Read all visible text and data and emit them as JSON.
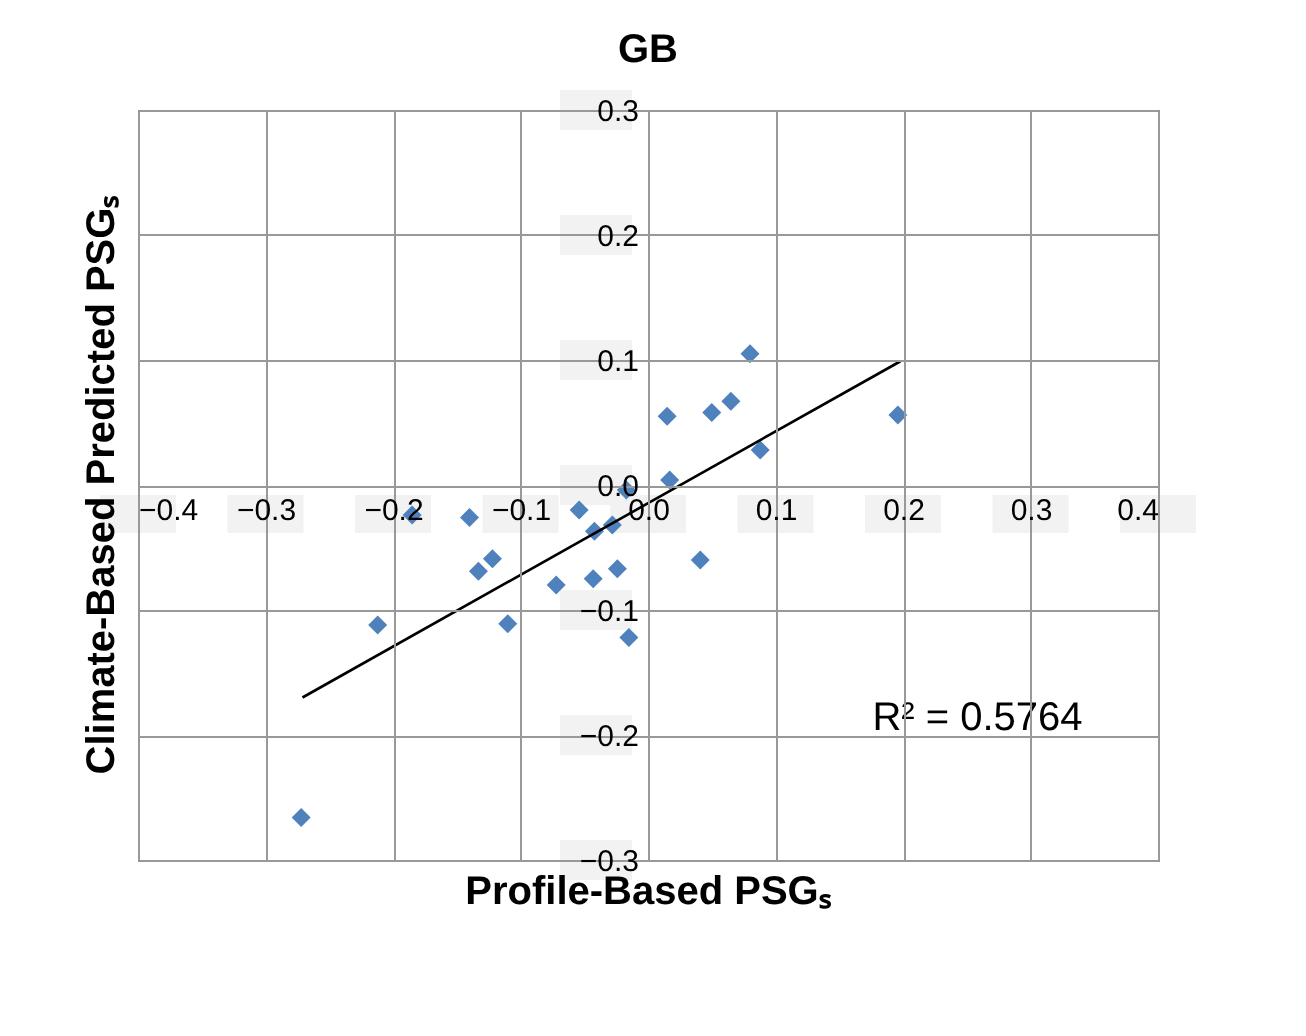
{
  "chart_data": {
    "type": "scatter",
    "title": "GB",
    "xlabel": "Profile-Based PSGₛ",
    "ylabel": "Climate-Based Predicted PSGₛ",
    "xlim": [
      -0.4,
      0.4
    ],
    "ylim": [
      -0.3,
      0.3
    ],
    "xticks": [
      {
        "value": -0.4,
        "label": "−0.4"
      },
      {
        "value": -0.3,
        "label": "−0.3"
      },
      {
        "value": -0.2,
        "label": "−0.2"
      },
      {
        "value": -0.1,
        "label": "−0.1"
      },
      {
        "value": 0,
        "label": "0.0"
      },
      0.1,
      0.2,
      0.3,
      0.4
    ],
    "yticks": [
      {
        "value": -0.3,
        "label": "−0.3"
      },
      {
        "value": -0.2,
        "label": "−0.2"
      },
      {
        "value": -0.1,
        "label": "−0.1"
      },
      {
        "value": 0,
        "label": "0.0"
      },
      0.1,
      0.2,
      0.3
    ],
    "grid": true,
    "legend": false,
    "marker": "diamond",
    "series": [
      {
        "color": "#4f81bd",
        "x": [
          0.08,
          0.196,
          0.015,
          0.05,
          0.065,
          0.088,
          0.017,
          -0.017,
          -0.14,
          -0.185,
          -0.054,
          -0.042,
          -0.028,
          -0.133,
          -0.122,
          -0.024,
          -0.043,
          -0.072,
          0.041,
          -0.11,
          -0.212,
          -0.015,
          -0.272
        ],
        "values": [
          0.105,
          0.056,
          0.055,
          0.058,
          0.067,
          0.028,
          0.004,
          -0.004,
          -0.026,
          -0.024,
          -0.02,
          -0.037,
          -0.032,
          -0.069,
          -0.059,
          -0.067,
          -0.075,
          -0.08,
          -0.06,
          -0.111,
          -0.112,
          -0.122,
          -0.266
        ]
      },
      {
        "type": "line",
        "color": "#000000",
        "marker": "none",
        "x": [
          -0.271,
          0.198
        ],
        "values": [
          -0.17,
          0.099
        ]
      }
    ],
    "annotations": [
      "R² = 0.5764"
    ]
  }
}
